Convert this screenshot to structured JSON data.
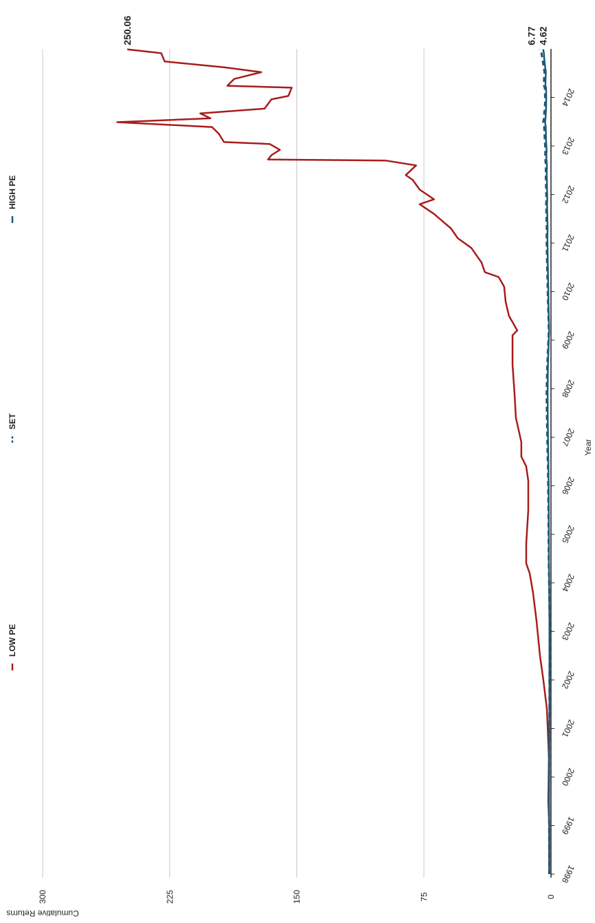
{
  "chart_data": {
    "type": "line",
    "x_label": "Year",
    "y_label": "Cumulative Returns",
    "x": [
      1998,
      1999,
      1999.5,
      2000.4,
      2001.4,
      2002,
      2002.5,
      2003.2,
      2003.8,
      2004.2,
      2004.4,
      2004.8,
      2005.5,
      2006.1,
      2006.4,
      2006.6,
      2006.9,
      2007.4,
      2007.9,
      2008.5,
      2009.1,
      2009.2,
      2009.5,
      2009.8,
      2010.1,
      2010.3,
      2010.4,
      2010.6,
      2010.9,
      2011.1,
      2011.3,
      2011.6,
      2011.8,
      2011.9,
      2012.1,
      2012.3,
      2012.4,
      2012.6,
      2012.7,
      2012.72,
      2012.81,
      2012.92,
      2013.04,
      2013.08,
      2013.25,
      2013.39,
      2013.49,
      2013.57,
      2013.67,
      2013.77,
      2013.96,
      2014.03,
      2014.2,
      2014.24,
      2014.38,
      2014.52,
      2014.62,
      2014.74,
      2014.91,
      2014.99
    ],
    "series": [
      {
        "name": "LOW PE",
        "color": "#a81c1c",
        "dashed": false,
        "values": [
          1,
          1,
          1.6,
          1.2,
          2.4,
          4.5,
          6.5,
          8.5,
          10.6,
          12.6,
          14.6,
          14.6,
          13.4,
          13.4,
          14.6,
          17.5,
          17.5,
          20.7,
          21.5,
          22.7,
          22.7,
          19.9,
          24.8,
          26.8,
          27.6,
          30.9,
          39,
          41,
          47,
          55,
          59,
          69,
          77.5,
          69,
          77.5,
          81.6,
          85.7,
          79.6,
          97.8,
          167,
          165,
          160,
          166,
          193,
          196,
          200,
          256,
          201,
          207,
          169,
          165,
          155,
          153,
          191,
          187,
          171,
          193,
          228,
          230,
          250.06
        ]
      },
      {
        "name": "SET",
        "color": "#1d5a78",
        "dashed": true,
        "values": [
          1,
          1.1,
          1.2,
          1.1,
          0.9,
          0.9,
          0.8,
          0.8,
          1,
          1.2,
          1.3,
          1.4,
          1.5,
          1.7,
          1.8,
          2,
          2.1,
          2.4,
          2.6,
          2.2,
          1.4,
          1.3,
          1.5,
          1.8,
          2,
          2.1,
          2.2,
          2.3,
          2.5,
          2.6,
          2.5,
          2.7,
          2.9,
          2.7,
          2.9,
          3,
          3.1,
          3,
          3.3,
          3.3,
          3.4,
          3.3,
          3.5,
          3.6,
          3.8,
          4,
          4.6,
          4.2,
          4,
          3.6,
          3.4,
          3.5,
          3.6,
          4.2,
          4.1,
          3.8,
          4.3,
          4.8,
          5.6,
          6.77
        ]
      },
      {
        "name": "HIGH PE",
        "color": "#1d5a78",
        "dashed": false,
        "values": [
          1,
          1,
          1.1,
          1,
          0.9,
          0.9,
          0.9,
          0.9,
          1,
          1.1,
          1.2,
          1.2,
          1.3,
          1.4,
          1.5,
          1.6,
          1.7,
          1.9,
          2,
          1.8,
          1.2,
          1.1,
          1.3,
          1.5,
          1.6,
          1.7,
          1.8,
          1.9,
          2,
          2.1,
          2,
          2.2,
          2.3,
          2.2,
          2.3,
          2.4,
          2.5,
          2.4,
          2.6,
          2.7,
          2.7,
          2.6,
          2.8,
          2.9,
          3,
          3.1,
          3.5,
          3.2,
          3.1,
          2.9,
          2.8,
          2.8,
          2.9,
          3.3,
          3.2,
          3,
          3.4,
          3.8,
          4.2,
          4.62
        ]
      }
    ],
    "xlim": [
      1998,
      2015
    ],
    "xticks": [
      1998,
      1999,
      2000,
      2001,
      2002,
      2003,
      2004,
      2005,
      2006,
      2007,
      2008,
      2009,
      2010,
      2011,
      2012,
      2013,
      2014
    ],
    "ylim": [
      0,
      300
    ],
    "yticks": [
      0,
      75,
      150,
      225,
      300
    ],
    "grid": true,
    "legend": "left"
  }
}
